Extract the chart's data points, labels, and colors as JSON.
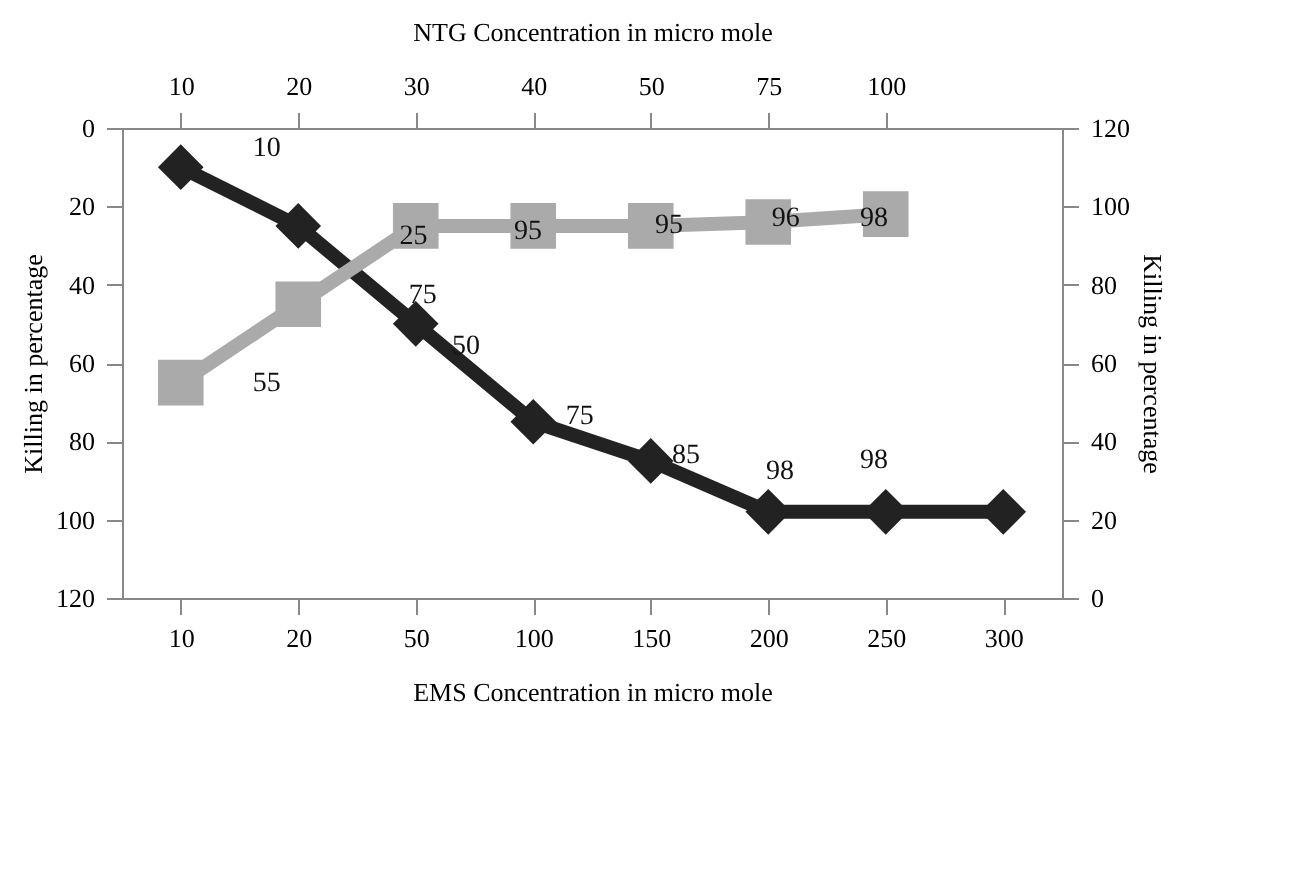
{
  "chart_data": {
    "type": "line",
    "xlabel": "EMS Concentration in micro mole",
    "x2label": "NTG Concentration in micro mole",
    "ylabel": "Killing in percentage",
    "y2label": "Killing in percentage",
    "categories": [
      "10",
      "20",
      "50",
      "100",
      "150",
      "200",
      "250",
      "300"
    ],
    "ylim": [
      120,
      0
    ],
    "yticks": [
      0,
      20,
      40,
      60,
      80,
      100,
      120
    ],
    "y2lim": [
      0,
      120
    ],
    "y2ticks": [
      0,
      20,
      40,
      60,
      80,
      100,
      120
    ],
    "grid": false,
    "legend": false,
    "series": [
      {
        "color": "#222222",
        "marker": "diamond",
        "values": [
          10,
          25,
          50,
          75,
          85,
          98,
          98,
          98
        ]
      },
      {
        "color": "#aaaaaa",
        "marker": "square",
        "axis": "y2",
        "values": [
          55,
          75,
          95,
          95,
          95,
          96,
          98,
          null
        ]
      }
    ],
    "annotations": [
      "10",
      "20",
      "30",
      "40",
      "50",
      "75",
      "100",
      "10",
      "25",
      "95",
      "95",
      "96",
      "98",
      "55",
      "75",
      "50",
      "75",
      "85",
      "98",
      "98"
    ]
  }
}
